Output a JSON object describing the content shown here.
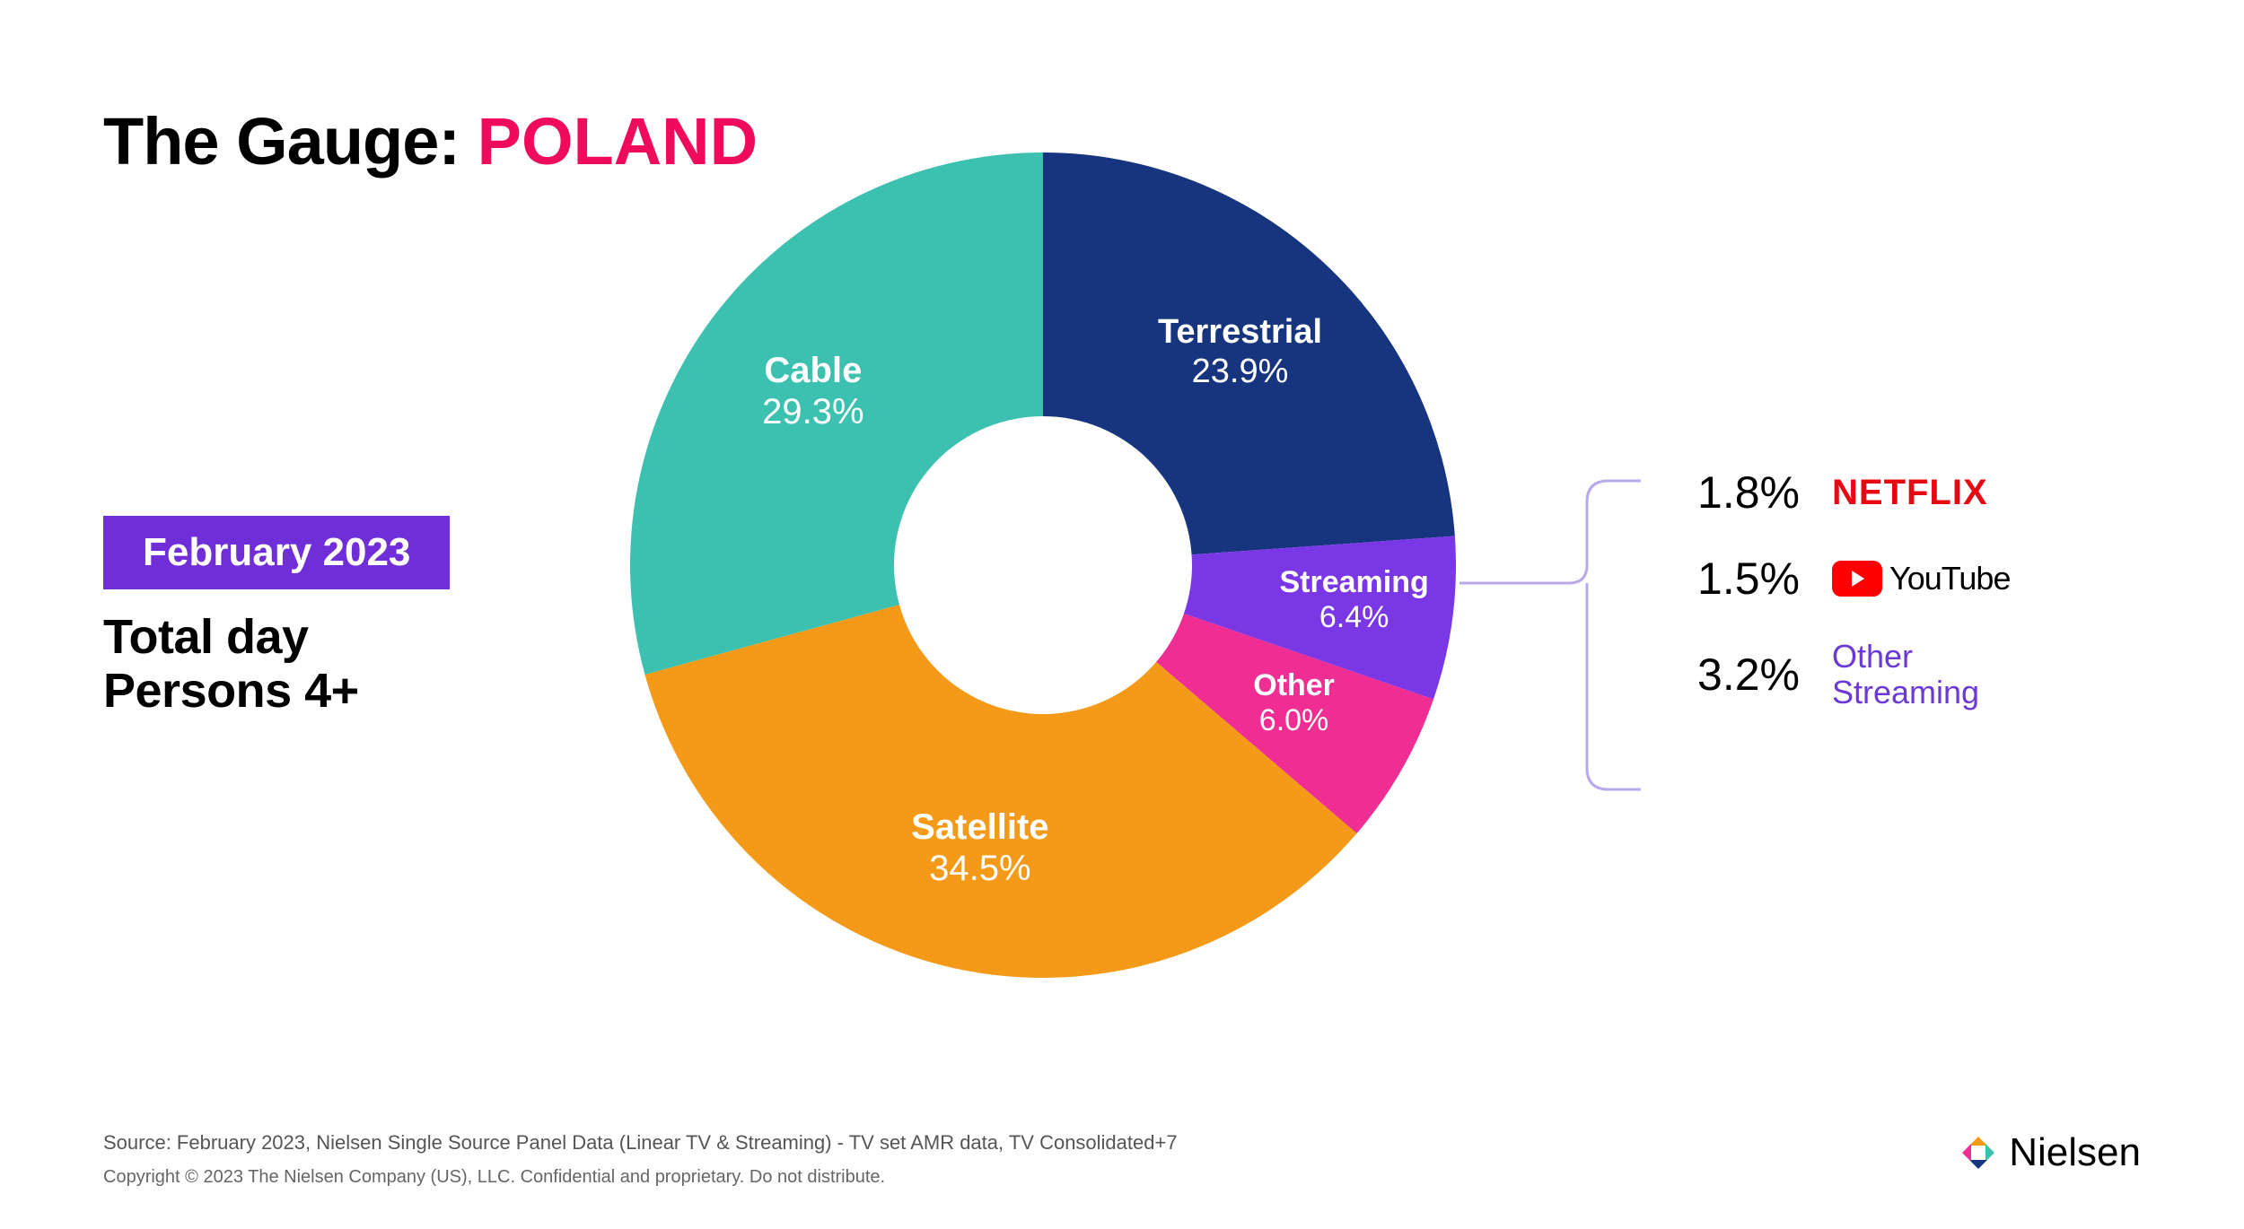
{
  "title": {
    "prefix": "The Gauge: ",
    "accent": "POLAND",
    "accent_color": "#ef0a5b"
  },
  "date_badge": {
    "text": "February 2023",
    "bg": "#6f2ed8",
    "fg": "#ffffff"
  },
  "subtitle_line1": "Total day",
  "subtitle_line2": "Persons 4+",
  "chart": {
    "type": "donut",
    "inner_radius_ratio": 0.36,
    "background_color": "#ffffff",
    "start_angle_deg": 0,
    "slices": [
      {
        "label": "Terrestrial",
        "value": 23.9,
        "color": "#17357f",
        "text_color": "#ffffff",
        "label_fontsize": 38,
        "pct_fontsize": 38
      },
      {
        "label": "Streaming",
        "value": 6.4,
        "color": "#7a37e6",
        "text_color": "#ffffff",
        "label_fontsize": 34,
        "pct_fontsize": 34
      },
      {
        "label": "Other",
        "value": 6.0,
        "color": "#ef2d92",
        "text_color": "#ffffff",
        "label_fontsize": 34,
        "pct_fontsize": 34
      },
      {
        "label": "Satellite",
        "value": 34.5,
        "color": "#f59a18",
        "text_color": "#ffffff",
        "label_fontsize": 40,
        "pct_fontsize": 40
      },
      {
        "label": "Cable",
        "value": 29.3,
        "color": "#3cc0af",
        "text_color": "#ffffff",
        "label_fontsize": 40,
        "pct_fontsize": 40
      }
    ],
    "label_radius_ratio": 0.7,
    "overrides": {
      "Streaming": {
        "label_radius_ratio": 0.76
      },
      "Other": {
        "label_radius_ratio": 0.7
      }
    }
  },
  "breakdown": {
    "bracket_color": "#b9a9e8",
    "items": [
      {
        "pct": "1.8%",
        "brand": "NETFLIX",
        "brand_color": "#e50914",
        "kind": "text"
      },
      {
        "pct": "1.5%",
        "brand": "YouTube",
        "brand_color": "#ff0000",
        "kind": "youtube"
      },
      {
        "pct": "3.2%",
        "brand_line1": "Other",
        "brand_line2": "Streaming",
        "brand_color": "#6b39d6",
        "kind": "other"
      }
    ]
  },
  "footnote": "Source: February 2023, Nielsen Single Source Panel Data (Linear TV & Streaming) - TV set AMR data, TV Consolidated+7",
  "copyright": "Copyright © 2023 The Nielsen Company (US), LLC. Confidential and proprietary. Do not distribute.",
  "logo": {
    "text": "Nielsen",
    "mark_colors": {
      "top": "#f59a18",
      "right": "#3cc0af",
      "bottom": "#17357f",
      "left": "#ef2d92"
    }
  }
}
